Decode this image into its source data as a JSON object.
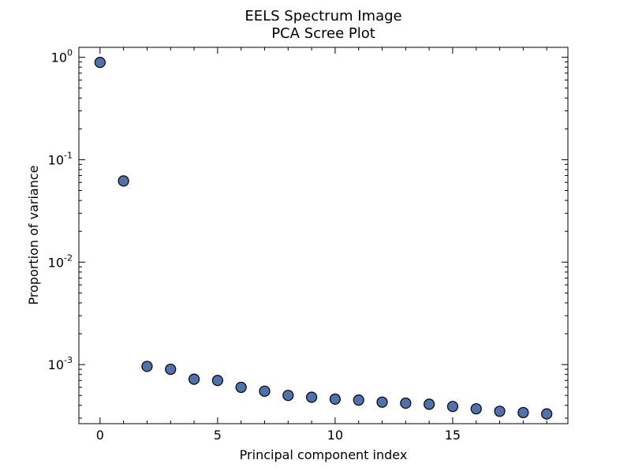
{
  "chart_data": {
    "type": "scatter",
    "title": [
      "EELS Spectrum Image",
      "PCA Scree Plot"
    ],
    "xlabel": "Principal component index",
    "ylabel": "Proportion of variance",
    "xlim": [
      -0.9,
      19.9
    ],
    "ylim": [
      0.000265,
      1.25
    ],
    "yscale": "log",
    "grid": false,
    "x_ticks": [
      0,
      5,
      10,
      15
    ],
    "y_ticks": [
      {
        "value": 0.001,
        "base": "10",
        "exp": "-3"
      },
      {
        "value": 0.01,
        "base": "10",
        "exp": "-2"
      },
      {
        "value": 0.1,
        "base": "10",
        "exp": "-1"
      },
      {
        "value": 1,
        "base": "10",
        "exp": "0"
      }
    ],
    "marker_color": "#4c72b0",
    "marker_edge": "#000000",
    "x": [
      0,
      1,
      2,
      3,
      4,
      5,
      6,
      7,
      8,
      9,
      10,
      11,
      12,
      13,
      14,
      15,
      16,
      17,
      18,
      19
    ],
    "y": [
      0.89,
      0.062,
      0.00096,
      0.0009,
      0.00072,
      0.0007,
      0.0006,
      0.00055,
      0.0005,
      0.00048,
      0.00046,
      0.00045,
      0.00043,
      0.00042,
      0.00041,
      0.00039,
      0.00037,
      0.00035,
      0.00034,
      0.00033
    ]
  }
}
